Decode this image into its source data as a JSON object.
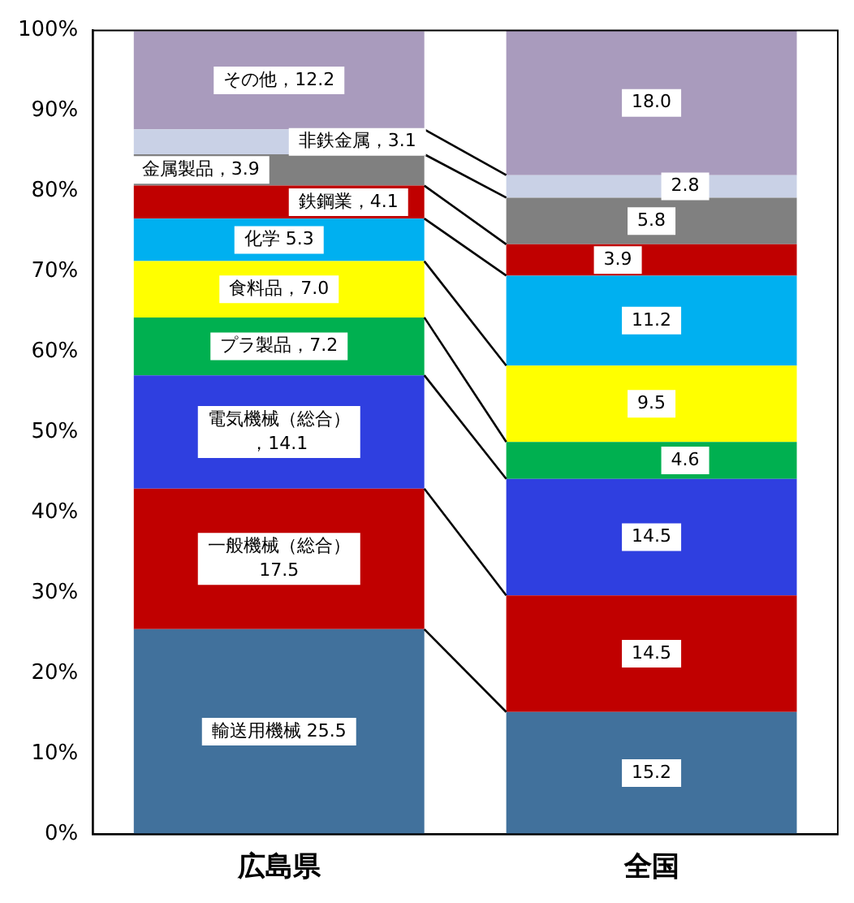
{
  "chart_data": {
    "type": "bar",
    "stacked": true,
    "categories": [
      "広島県",
      "全国"
    ],
    "series": [
      {
        "color": "#41719c",
        "values": [
          25.5,
          15.2
        ],
        "value_labels": [
          "輸送用機械 25.5",
          "15.2"
        ]
      },
      {
        "color": "#c00000",
        "values": [
          17.5,
          14.5
        ],
        "value_labels": [
          "一般機械（総合）17.5",
          "14.5"
        ]
      },
      {
        "color": "#2f3fe0",
        "values": [
          14.1,
          14.5
        ],
        "value_labels": [
          "電気機械（総合），14.1",
          "14.5"
        ]
      },
      {
        "color": "#00b050",
        "values": [
          7.2,
          4.6
        ],
        "value_labels": [
          "プラ製品，7.2",
          "4.6"
        ]
      },
      {
        "color": "#ffff00",
        "values": [
          7.0,
          9.5
        ],
        "value_labels": [
          "食料品，7.0",
          "9.5"
        ]
      },
      {
        "color": "#00b0f0",
        "values": [
          5.3,
          11.2
        ],
        "value_labels": [
          "化学 5.3",
          "11.2"
        ]
      },
      {
        "color": "#c00000",
        "values": [
          4.1,
          3.9
        ],
        "value_labels": [
          "鉄鋼業，4.1",
          "3.9"
        ]
      },
      {
        "color": "#808080",
        "values": [
          3.9,
          5.8
        ],
        "value_labels": [
          "金属製品，3.9",
          "5.8"
        ]
      },
      {
        "color": "#c9d1e6",
        "values": [
          3.1,
          2.8
        ],
        "value_labels": [
          "非鉄金属，3.1",
          "2.8"
        ]
      },
      {
        "color": "#a99bbd",
        "values": [
          12.2,
          18.0
        ],
        "value_labels": [
          "その他，12.2",
          "18.0"
        ]
      }
    ],
    "ylim": [
      0,
      100
    ],
    "yticks": [
      {
        "value": 0,
        "label": "0%"
      },
      {
        "value": 10,
        "label": "10%"
      },
      {
        "value": 20,
        "label": "20%"
      },
      {
        "value": 30,
        "label": "30%"
      },
      {
        "value": 40,
        "label": "40%"
      },
      {
        "value": 50,
        "label": "50%"
      },
      {
        "value": 60,
        "label": "60%"
      },
      {
        "value": 70,
        "label": "70%"
      },
      {
        "value": 80,
        "label": "80%"
      },
      {
        "value": 90,
        "label": "90%"
      },
      {
        "value": 100,
        "label": "100%"
      }
    ],
    "grid": false,
    "legend": false
  }
}
